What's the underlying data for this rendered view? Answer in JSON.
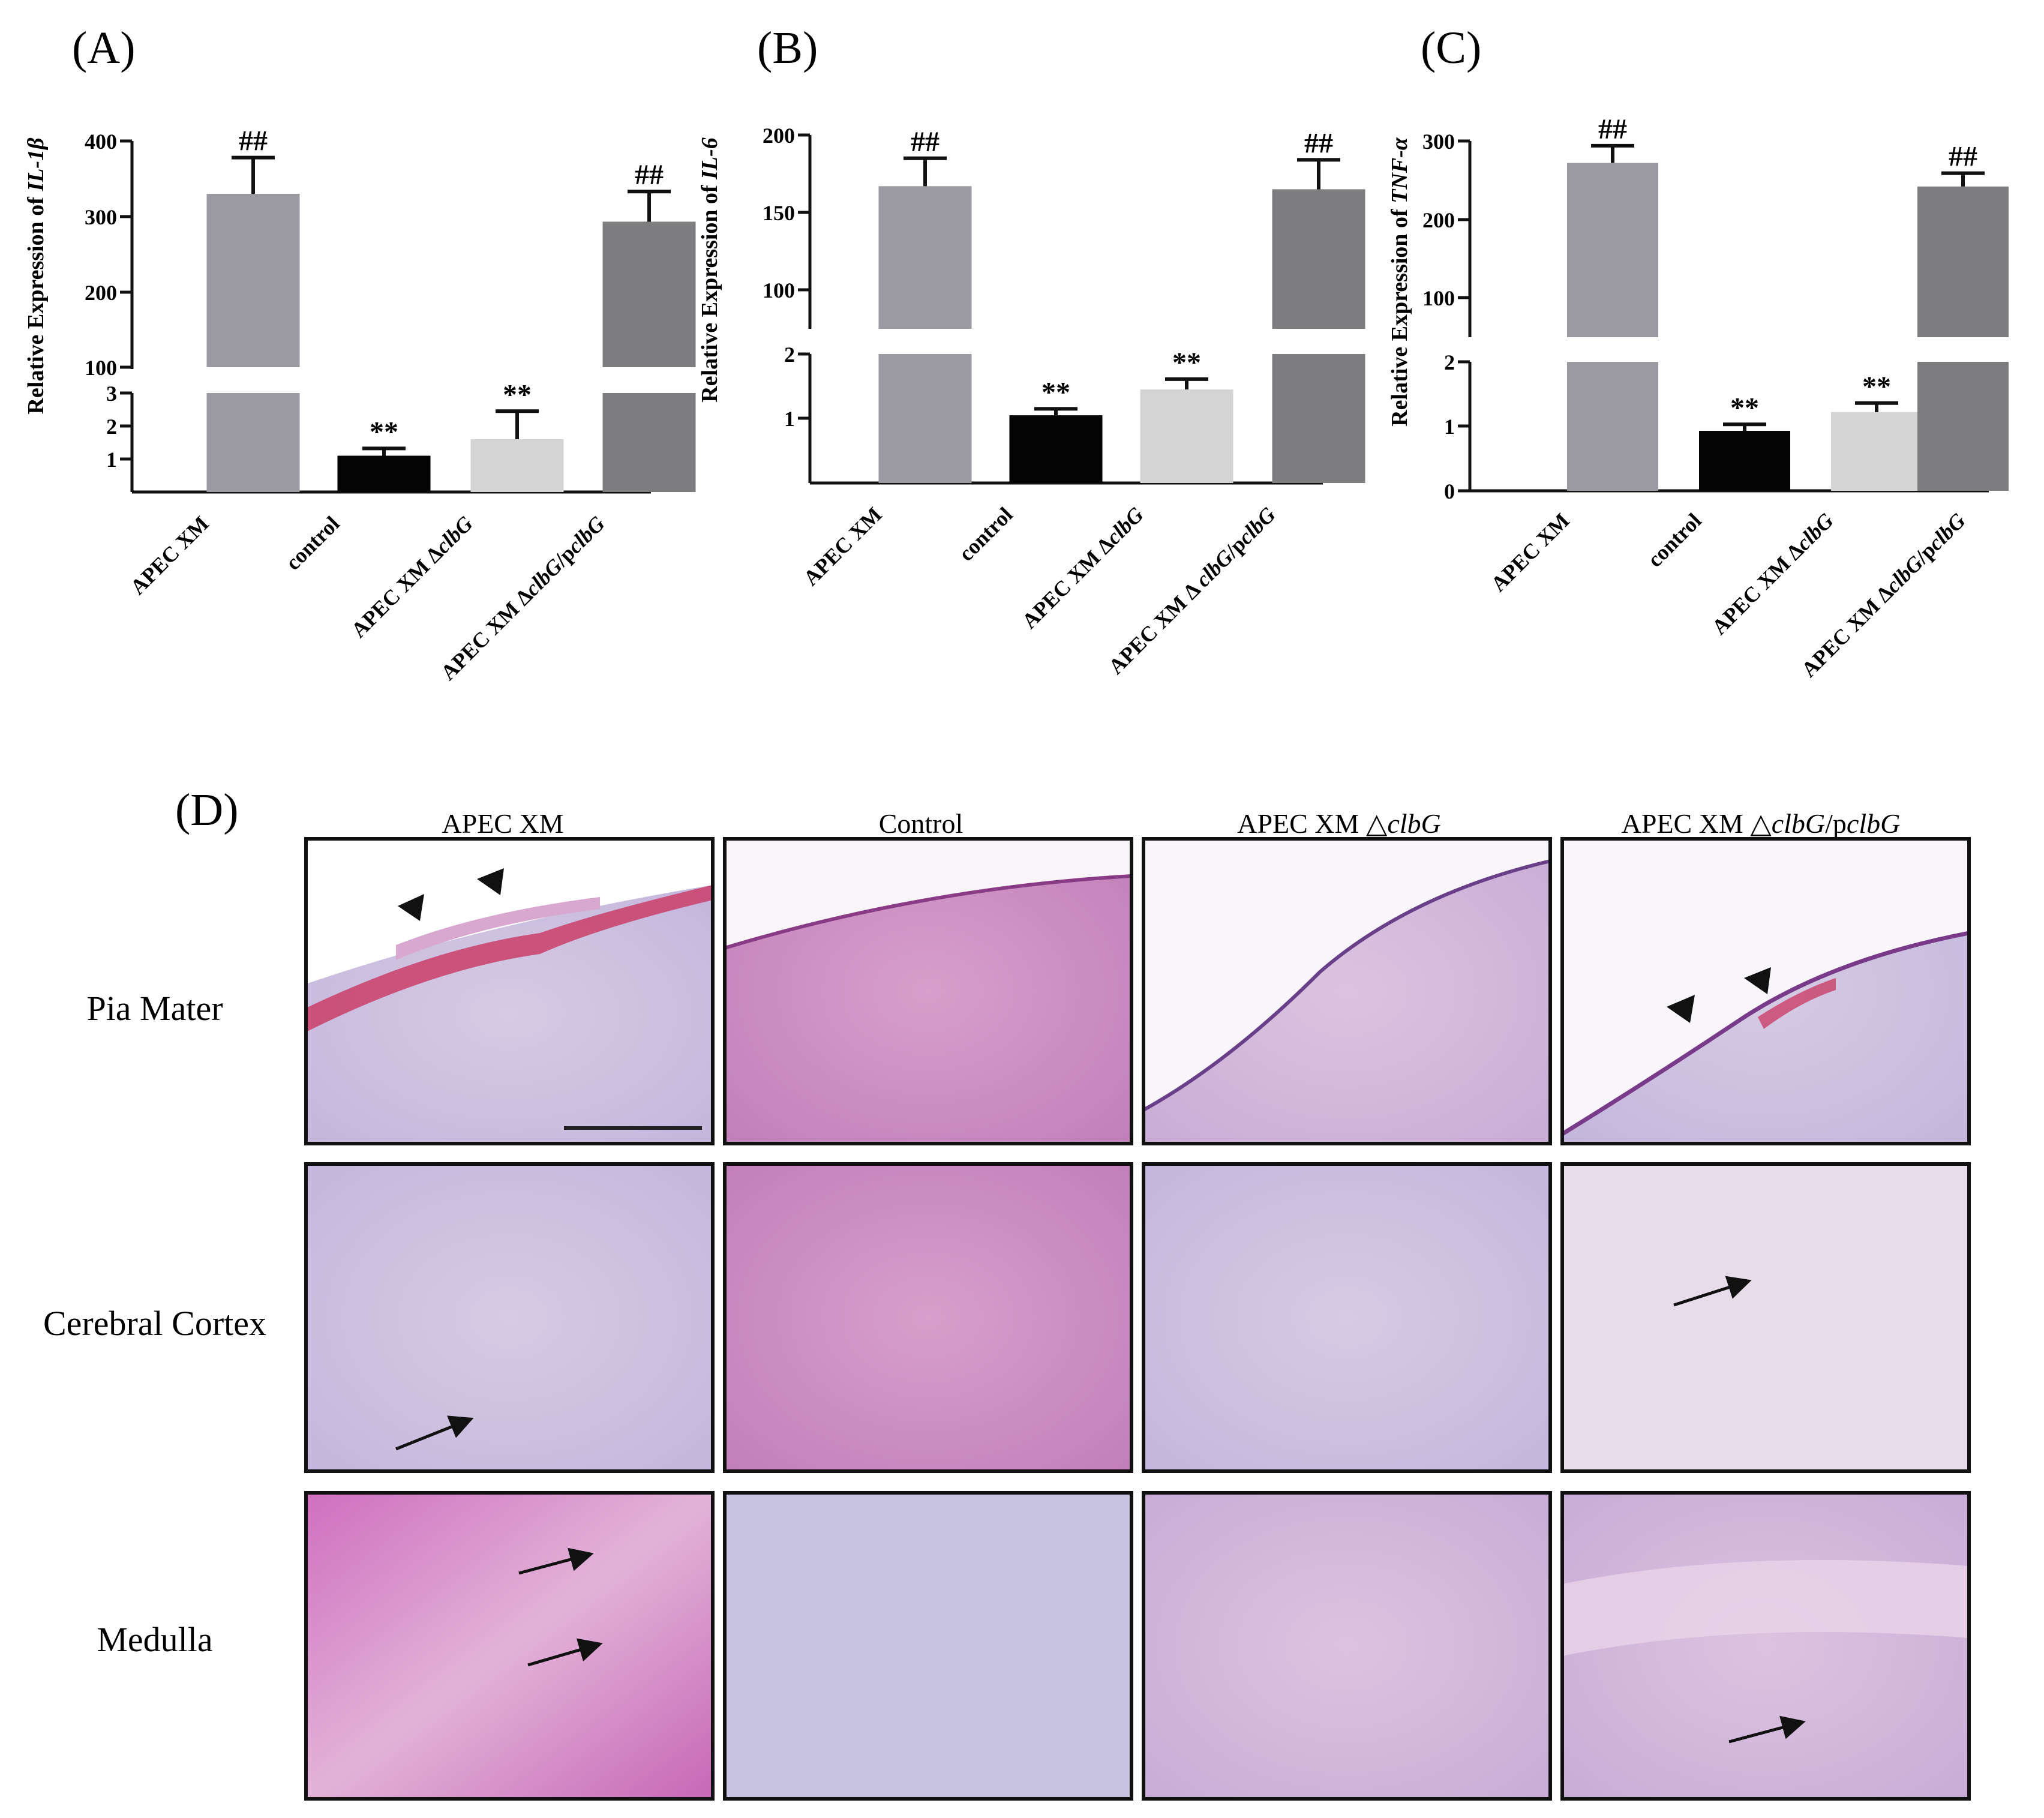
{
  "chart_data": [
    {
      "type": "bar",
      "panel": "(A)",
      "ylabel_prefix": "Relative Expression of ",
      "ylabel_gene": "IL-1β",
      "categories": [
        "APEC XM",
        "control",
        "APEC XM ΔclbG",
        "APEC XM ΔclbG/pclbG"
      ],
      "values": [
        330,
        1.1,
        1.6,
        293
      ],
      "errors": [
        48,
        0.22,
        0.85,
        40
      ],
      "significance": [
        "##",
        "**",
        "**",
        "##"
      ],
      "colors": [
        "#9a9aa0",
        "#050505",
        "#d4d4d4",
        "#7d7d7f"
      ],
      "y_break": {
        "lower": [
          0,
          3
        ],
        "upper": [
          100,
          400
        ]
      },
      "lower_ticks": [
        "1",
        "2",
        "3"
      ],
      "upper_ticks": [
        "100",
        "200",
        "300",
        "400"
      ]
    },
    {
      "type": "bar",
      "panel": "(B)",
      "ylabel_prefix": "Relative Expression of ",
      "ylabel_gene": "IL-6",
      "categories": [
        "APEC XM",
        "control",
        "APEC XM ΔclbG",
        "APEC XM Δ clbG/pclbG"
      ],
      "values": [
        167,
        1.05,
        1.45,
        165
      ],
      "errors": [
        18,
        0.1,
        0.16,
        19
      ],
      "significance": [
        "##",
        "**",
        "**",
        "##"
      ],
      "colors": [
        "#9a9aa0",
        "#050505",
        "#d4d4d4",
        "#7d7d7f"
      ],
      "y_break": {
        "lower": [
          0,
          2
        ],
        "upper": [
          75,
          200
        ]
      },
      "lower_ticks": [
        "1",
        "2"
      ],
      "upper_ticks": [
        "100",
        "150",
        "200"
      ]
    },
    {
      "type": "bar",
      "panel": "(C)",
      "ylabel_prefix": "Relative Expression of ",
      "ylabel_gene": "TNF-α",
      "categories": [
        "APEC XM",
        "control",
        "APEC XM ΔclbG",
        "APEC XM ΔclbG/pclbG"
      ],
      "values": [
        272,
        0.93,
        1.22,
        242
      ],
      "errors": [
        22,
        0.1,
        0.14,
        17
      ],
      "significance": [
        "##",
        "**",
        "**",
        "##"
      ],
      "colors": [
        "#9a9aa0",
        "#050505",
        "#d4d4d4",
        "#7d7d7f"
      ],
      "y_break": {
        "lower": [
          0,
          2
        ],
        "upper": [
          50,
          300
        ]
      },
      "lower_ticks": [
        "0",
        "1",
        "2"
      ],
      "upper_ticks": [
        "100",
        "200",
        "300"
      ]
    }
  ],
  "histology": {
    "panel": "(D)",
    "columns": [
      "APEC XM",
      "Control",
      "APEC XM △clbG",
      "APEC XM △clbG/pclbG"
    ],
    "rows": [
      "Pia Mater",
      "Cerebral Cortex",
      "Medulla"
    ]
  }
}
